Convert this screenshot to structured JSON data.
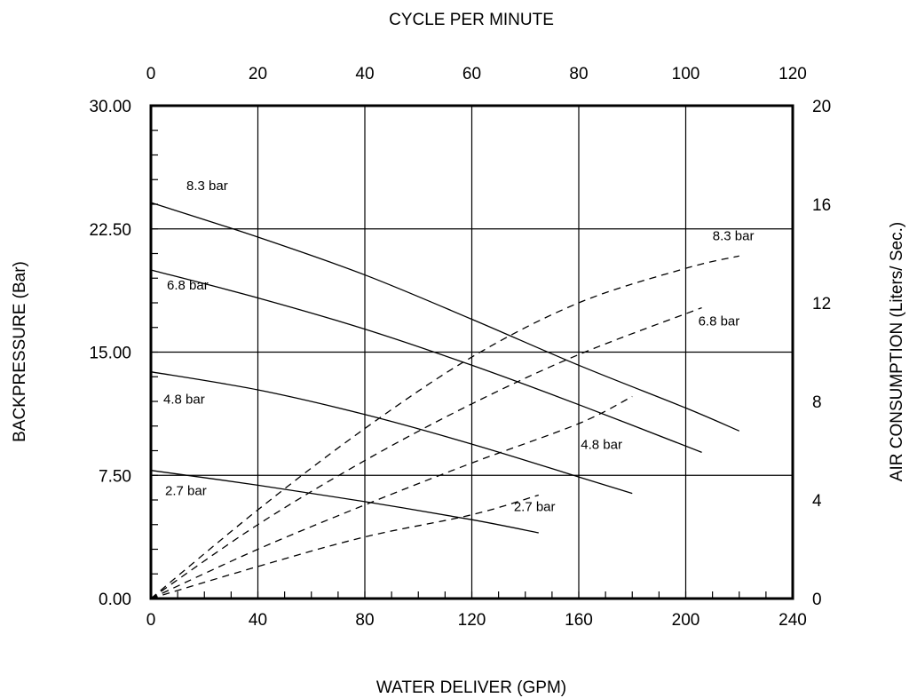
{
  "chart_data": {
    "type": "line",
    "x_axis": {
      "label": "WATER DELIVER (GPM)",
      "range": [
        0,
        240
      ],
      "ticks": [
        "0",
        "40",
        "80",
        "120",
        "160",
        "200",
        "240"
      ]
    },
    "x2_axis": {
      "label": "CYCLE PER MINUTE",
      "range": [
        0,
        120
      ],
      "ticks": [
        "0",
        "20",
        "40",
        "60",
        "80",
        "100",
        "120"
      ]
    },
    "y_axis": {
      "label": "BACKPRESSURE  (Bar)",
      "range": [
        0,
        30
      ],
      "ticks": [
        "0.00",
        "7.50",
        "15.00",
        "22.50",
        "30.00"
      ]
    },
    "y2_axis": {
      "label": "AIR CONSUMPTION (Liters/ Sec.)",
      "range": [
        0,
        20
      ],
      "ticks": [
        "0",
        "4",
        "8",
        "12",
        "16",
        "20"
      ]
    },
    "grid": true,
    "series": [
      {
        "name": "8.3 bar",
        "axis": "backpressure",
        "style": "solid",
        "x": [
          0,
          40,
          80,
          120,
          160,
          200,
          220
        ],
        "y": [
          24.1,
          22.0,
          19.7,
          17.0,
          14.2,
          11.6,
          10.2
        ]
      },
      {
        "name": "6.8 bar",
        "axis": "backpressure",
        "style": "solid",
        "x": [
          0,
          40,
          80,
          120,
          160,
          206
        ],
        "y": [
          20.0,
          18.3,
          16.4,
          14.2,
          11.8,
          8.9
        ]
      },
      {
        "name": "4.8 bar",
        "axis": "backpressure",
        "style": "solid",
        "x": [
          0,
          40,
          80,
          120,
          160,
          180
        ],
        "y": [
          13.8,
          12.7,
          11.2,
          9.4,
          7.4,
          6.4
        ]
      },
      {
        "name": "2.7 bar",
        "axis": "backpressure",
        "style": "solid",
        "x": [
          0,
          40,
          80,
          120,
          145
        ],
        "y": [
          7.8,
          6.9,
          5.9,
          4.8,
          4.0
        ]
      },
      {
        "name": "8.3 bar",
        "axis": "air_consumption",
        "style": "dashed",
        "x": [
          0,
          40,
          80,
          120,
          160,
          200,
          220
        ],
        "y": [
          0,
          3.6,
          6.9,
          9.8,
          12.0,
          13.4,
          13.9
        ]
      },
      {
        "name": "6.8 bar",
        "axis": "air_consumption",
        "style": "dashed",
        "x": [
          0,
          40,
          80,
          120,
          160,
          206
        ],
        "y": [
          0,
          3.0,
          5.6,
          7.9,
          9.9,
          11.8
        ]
      },
      {
        "name": "4.8 bar",
        "axis": "air_consumption",
        "style": "dashed",
        "x": [
          0,
          40,
          80,
          120,
          160,
          180
        ],
        "y": [
          0,
          2.0,
          3.8,
          5.5,
          7.1,
          8.2
        ]
      },
      {
        "name": "2.7 bar",
        "axis": "air_consumption",
        "style": "dashed",
        "x": [
          0,
          40,
          80,
          120,
          145
        ],
        "y": [
          0,
          1.3,
          2.5,
          3.4,
          4.2
        ]
      }
    ]
  }
}
